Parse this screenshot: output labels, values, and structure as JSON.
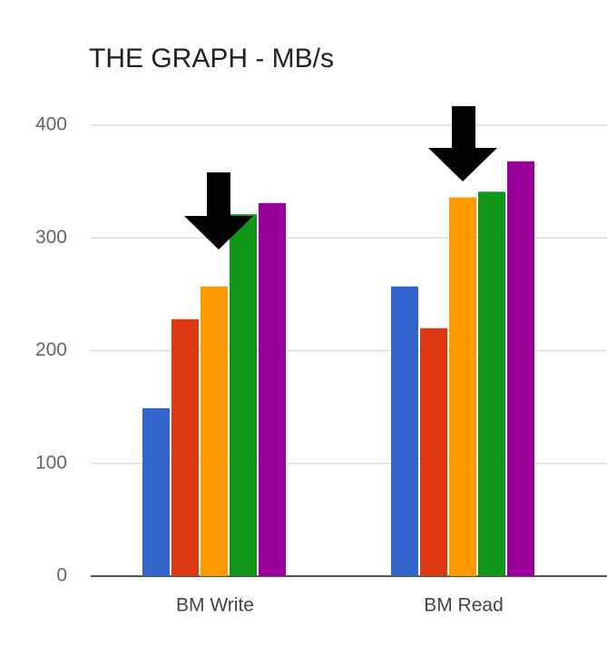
{
  "chart_data": {
    "type": "bar",
    "title": "THE GRAPH  - MB/s",
    "categories": [
      "BM Write",
      "BM Read"
    ],
    "series": [
      {
        "color": "#3366cc",
        "values": [
          149,
          257
        ]
      },
      {
        "color": "#dc3912",
        "values": [
          228,
          220
        ]
      },
      {
        "color": "#ff9900",
        "values": [
          257,
          336
        ]
      },
      {
        "color": "#109618",
        "values": [
          321,
          341
        ]
      },
      {
        "color": "#990099",
        "values": [
          331,
          368
        ]
      }
    ],
    "ylim": [
      0,
      400
    ],
    "yticks": [
      0,
      100,
      200,
      300,
      400
    ],
    "grid": true
  }
}
